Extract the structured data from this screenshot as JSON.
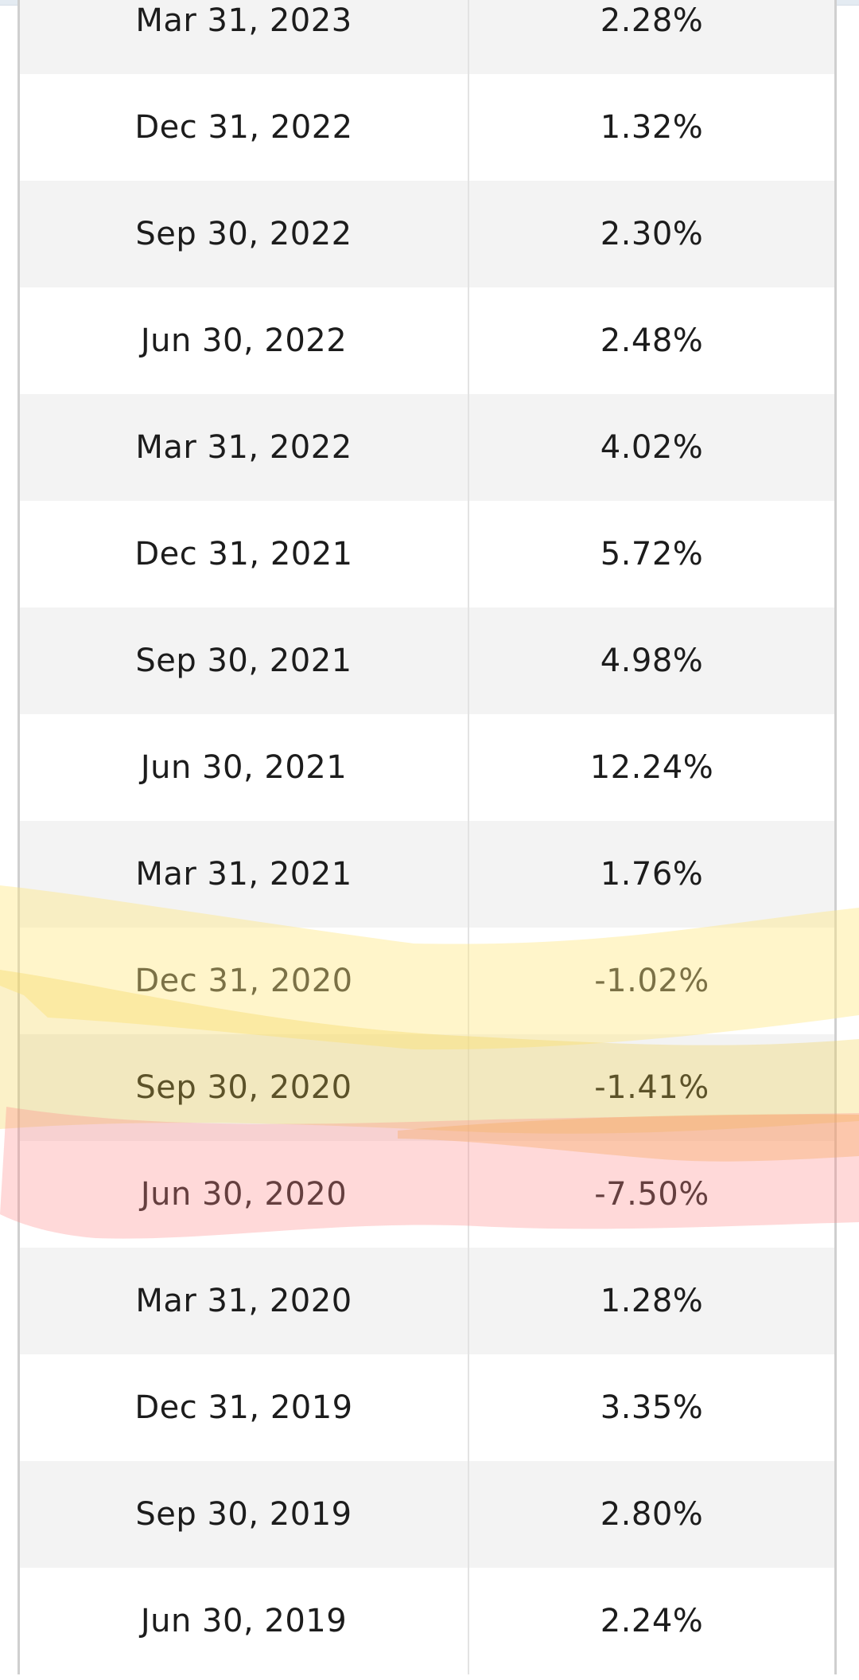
{
  "table": {
    "rows": [
      {
        "date": "Mar 31, 2023",
        "value": "2.28%"
      },
      {
        "date": "Dec 31, 2022",
        "value": "1.32%"
      },
      {
        "date": "Sep 30, 2022",
        "value": "2.30%"
      },
      {
        "date": "Jun 30, 2022",
        "value": "2.48%"
      },
      {
        "date": "Mar 31, 2022",
        "value": "4.02%"
      },
      {
        "date": "Dec 31, 2021",
        "value": "5.72%"
      },
      {
        "date": "Sep 30, 2021",
        "value": "4.98%"
      },
      {
        "date": "Jun 30, 2021",
        "value": "12.24%"
      },
      {
        "date": "Mar 31, 2021",
        "value": "1.76%"
      },
      {
        "date": "Dec 31, 2020",
        "value": "-1.02%"
      },
      {
        "date": "Sep 30, 2020",
        "value": "-1.41%"
      },
      {
        "date": "Jun 30, 2020",
        "value": "-7.50%"
      },
      {
        "date": "Mar 31, 2020",
        "value": "1.28%"
      },
      {
        "date": "Dec 31, 2019",
        "value": "3.35%"
      },
      {
        "date": "Sep 30, 2019",
        "value": "2.80%"
      },
      {
        "date": "Jun 30, 2019",
        "value": "2.24%"
      }
    ]
  },
  "highlight_colors": {
    "yellow": "#ffe680",
    "gold": "#f2d04a",
    "red": "#ff8a8a",
    "orange": "#f6a55a"
  }
}
